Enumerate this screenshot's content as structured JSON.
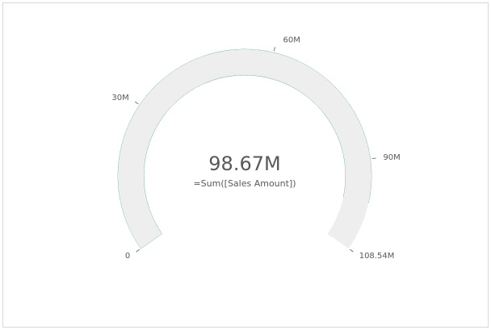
{
  "chart_data": {
    "type": "gauge",
    "values": [
      98.67
    ],
    "value_labels": [
      "98.67M"
    ],
    "measure_label": "=Sum([Sales Amount])",
    "color": "#26a0a7",
    "track_color": "#eeeeee",
    "ylim": [
      0,
      108.54
    ],
    "yticks": [
      0,
      {
        "value": 30,
        "label": "30M"
      },
      {
        "value": 60,
        "label": "60M"
      },
      {
        "value": 90,
        "label": "90M"
      },
      {
        "value": 108.54,
        "label": "108.54M"
      }
    ]
  }
}
